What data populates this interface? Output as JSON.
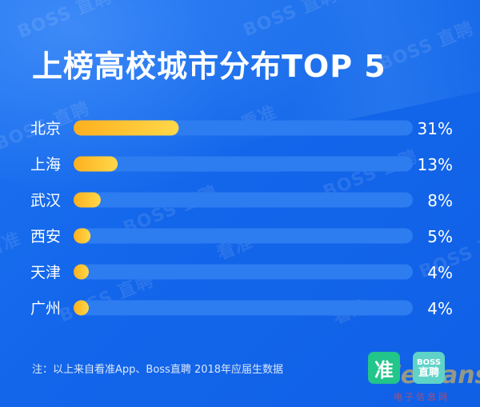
{
  "title": "上榜高校城市分布TOP 5",
  "note": "注：以上来自看准App、Boss直聘 2018年应届生数据",
  "logos": {
    "kanzhun": "准",
    "boss_line1": "BOSS",
    "boss_line2": "直聘"
  },
  "watermark": {
    "boss": "BOSS 直聘",
    "kanzhun": "看准"
  },
  "site_mark": {
    "main": "Elecfans",
    "sub": "电子信息网"
  },
  "colors": {
    "bg": "#1565ea",
    "track": "#2d7cf0",
    "bar_start": "#ffb01e",
    "bar_end": "#ffd84a",
    "label": "#ffffff"
  },
  "chart_data": {
    "type": "bar",
    "orientation": "horizontal",
    "categories": [
      "北京",
      "上海",
      "武汉",
      "西安",
      "天津",
      "广州"
    ],
    "values": [
      31,
      13,
      8,
      5,
      4,
      4
    ],
    "value_labels": [
      "31%",
      "13%",
      "8%",
      "5%",
      "4%",
      "4%"
    ],
    "xlim": [
      0,
      100
    ],
    "title": "上榜高校城市分布TOP 5",
    "grid": false,
    "legend": "none"
  }
}
